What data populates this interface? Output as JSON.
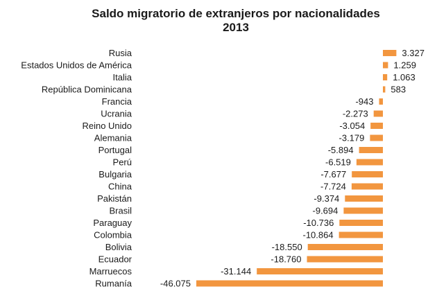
{
  "chart_data": {
    "type": "bar",
    "orientation": "horizontal",
    "title": "Saldo migratorio de extranjeros por nacionalidades",
    "subtitle": "2013",
    "bar_color": "#F2963F",
    "categories": [
      "Rusia",
      "Estados Unidos de América",
      "Italia",
      "República Dominicana",
      "Francia",
      "Ucrania",
      "Reino Unido",
      "Alemania",
      "Portugal",
      "Perú",
      "Bulgaria",
      "China",
      "Pakistán",
      "Brasil",
      "Paraguay",
      "Colombia",
      "Bolivia",
      "Ecuador",
      "Marruecos",
      "Rumanía"
    ],
    "values": [
      3327,
      1259,
      1063,
      583,
      -943,
      -2273,
      -3054,
      -3179,
      -5894,
      -6519,
      -7677,
      -7724,
      -9374,
      -9694,
      -10736,
      -10864,
      -18550,
      -18760,
      -31144,
      -46075
    ],
    "value_labels": [
      "3.327",
      "1.259",
      "1.063",
      "583",
      "-943",
      "-2.273",
      "-3.054",
      "-3.179",
      "-5.894",
      "-6.519",
      "-7.677",
      "-7.724",
      "-9.374",
      "-9.694",
      "-10.736",
      "-10.864",
      "-18.550",
      "-18.760",
      "-31.144",
      "-46.075"
    ],
    "grid": false,
    "legend": "none"
  }
}
